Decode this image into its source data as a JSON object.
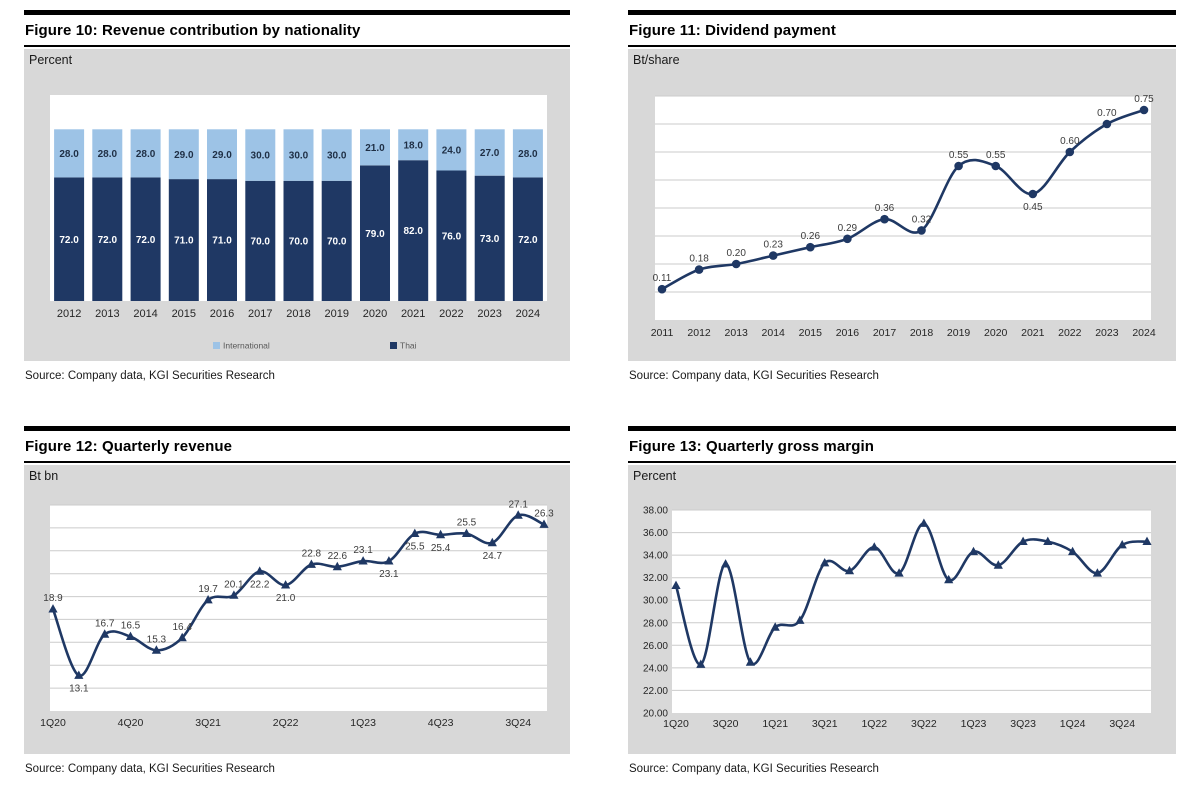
{
  "colors": {
    "navy": "#1F3864",
    "light_blue": "#9DC3E6",
    "panel_gray": "#D8D8D8",
    "plot_white": "#FFFFFF",
    "gridline": "#CBCBCB",
    "data_label": "#3C3C3C",
    "tick_label": "#262626",
    "legend_text": "#595959"
  },
  "figures": [
    {
      "id": "figure-10",
      "title": "Figure 10: Revenue contribution by nationality",
      "unit": "Percent",
      "source": "Source: Company data, KGI Securities Research",
      "chart_data": {
        "type": "bar",
        "stacked": true,
        "categories": [
          "2012",
          "2013",
          "2014",
          "2015",
          "2016",
          "2017",
          "2018",
          "2019",
          "2020",
          "2021",
          "2022",
          "2023",
          "2024"
        ],
        "series": [
          {
            "name": "Thai",
            "color": "#1F3864",
            "label_color": "#FFFFFF",
            "values": [
              72.0,
              72.0,
              72.0,
              71.0,
              71.0,
              70.0,
              70.0,
              70.0,
              79.0,
              82.0,
              76.0,
              73.0,
              72.0
            ]
          },
          {
            "name": "International",
            "color": "#9DC3E6",
            "label_color": "#1F2F45",
            "values": [
              28.0,
              28.0,
              28.0,
              29.0,
              29.0,
              30.0,
              30.0,
              30.0,
              21.0,
              18.0,
              24.0,
              27.0,
              28.0
            ]
          }
        ],
        "legend": [
          {
            "label": "International",
            "color": "#9DC3E6"
          },
          {
            "label": "Thai",
            "color": "#1F3864"
          }
        ],
        "value_decimals": 1,
        "ylim": [
          0,
          120
        ],
        "grid": false,
        "legend_position": "bottom"
      }
    },
    {
      "id": "figure-11",
      "title": "Figure 11: Dividend payment",
      "unit": "Bt/share",
      "source": "Source: Company data, KGI Securities Research",
      "chart_data": {
        "type": "line",
        "marker": "circle",
        "line_color": "#1F3864",
        "x": [
          "2011",
          "2012",
          "2013",
          "2014",
          "2015",
          "2016",
          "2017",
          "2018",
          "2019",
          "2020",
          "2021",
          "2022",
          "2023",
          "2024"
        ],
        "values": [
          0.11,
          0.18,
          0.2,
          0.23,
          0.26,
          0.29,
          0.36,
          0.32,
          0.55,
          0.55,
          0.45,
          0.6,
          0.7,
          0.75
        ],
        "labels": [
          "0.11",
          "0.18",
          "0.20",
          "0.23",
          "0.26",
          "0.29",
          "0.36",
          "0.32",
          "0.55",
          "0.55",
          "0.45",
          "0.60",
          "0.70",
          "0.75"
        ],
        "label_side": [
          "above",
          "above",
          "above",
          "above",
          "above",
          "above",
          "above",
          "above",
          "above",
          "above",
          "below",
          "above",
          "above",
          "above"
        ],
        "ylim": [
          0,
          0.8
        ],
        "grid_step": 0.1,
        "grid": true
      }
    },
    {
      "id": "figure-12",
      "title": "Figure 12: Quarterly revenue",
      "unit": "Bt bn",
      "source": "Source: Company data, KGI Securities Research",
      "chart_data": {
        "type": "line",
        "marker": "triangle",
        "line_color": "#1F3864",
        "x": [
          "1Q20",
          "2Q20",
          "3Q20",
          "4Q20",
          "1Q21",
          "2Q21",
          "3Q21",
          "4Q21",
          "1Q22",
          "2Q22",
          "3Q22",
          "4Q22",
          "1Q23",
          "2Q23",
          "3Q23",
          "4Q23",
          "1Q24",
          "2Q24",
          "3Q24",
          "4Q24"
        ],
        "values": [
          18.9,
          13.1,
          16.7,
          16.5,
          15.3,
          16.4,
          19.7,
          20.1,
          22.2,
          21.0,
          22.8,
          22.6,
          23.1,
          23.1,
          25.5,
          25.4,
          25.5,
          24.7,
          27.1,
          26.3
        ],
        "labels": [
          "18.9",
          "13.1",
          "16.7",
          "16.5",
          "15.3",
          "16.4",
          "19.7",
          "20.1",
          "22.2",
          "21.0",
          "22.8",
          "22.6",
          "23.1",
          "23.1",
          "25.5",
          "25.4",
          "25.5",
          "24.7",
          "27.1",
          "26.3"
        ],
        "label_side": [
          "above",
          "below",
          "above",
          "above",
          "above",
          "above",
          "above",
          "above",
          "below",
          "below",
          "above",
          "above",
          "above",
          "below",
          "below",
          "below",
          "above",
          "below",
          "above",
          "above"
        ],
        "ylim": [
          10,
          28
        ],
        "grid_step": 2,
        "grid": true,
        "x_tick_indices": [
          0,
          3,
          6,
          9,
          12,
          15,
          18
        ]
      }
    },
    {
      "id": "figure-13",
      "title": "Figure 13: Quarterly gross margin",
      "unit": "Percent",
      "source": "Source: Company data, KGI Securities Research",
      "chart_data": {
        "type": "line",
        "marker": "triangle",
        "line_color": "#1F3864",
        "x": [
          "1Q20",
          "2Q20",
          "3Q20",
          "4Q20",
          "1Q21",
          "2Q21",
          "3Q21",
          "4Q21",
          "1Q22",
          "2Q22",
          "3Q22",
          "4Q22",
          "1Q23",
          "2Q23",
          "3Q23",
          "4Q23",
          "1Q24",
          "2Q24",
          "3Q24",
          "4Q24"
        ],
        "values": [
          31.3,
          24.3,
          33.2,
          24.5,
          27.6,
          28.2,
          33.3,
          32.6,
          34.7,
          32.4,
          36.8,
          31.8,
          34.3,
          33.1,
          35.2,
          35.2,
          34.3,
          32.4,
          34.9,
          35.2
        ],
        "ylim": [
          20,
          38
        ],
        "grid_step": 2,
        "grid": true,
        "y_tick_labels": [
          "20.00",
          "22.00",
          "24.00",
          "26.00",
          "28.00",
          "30.00",
          "32.00",
          "34.00",
          "36.00",
          "38.00"
        ],
        "x_tick_indices": [
          0,
          2,
          4,
          6,
          8,
          10,
          12,
          14,
          16,
          18
        ]
      }
    }
  ]
}
